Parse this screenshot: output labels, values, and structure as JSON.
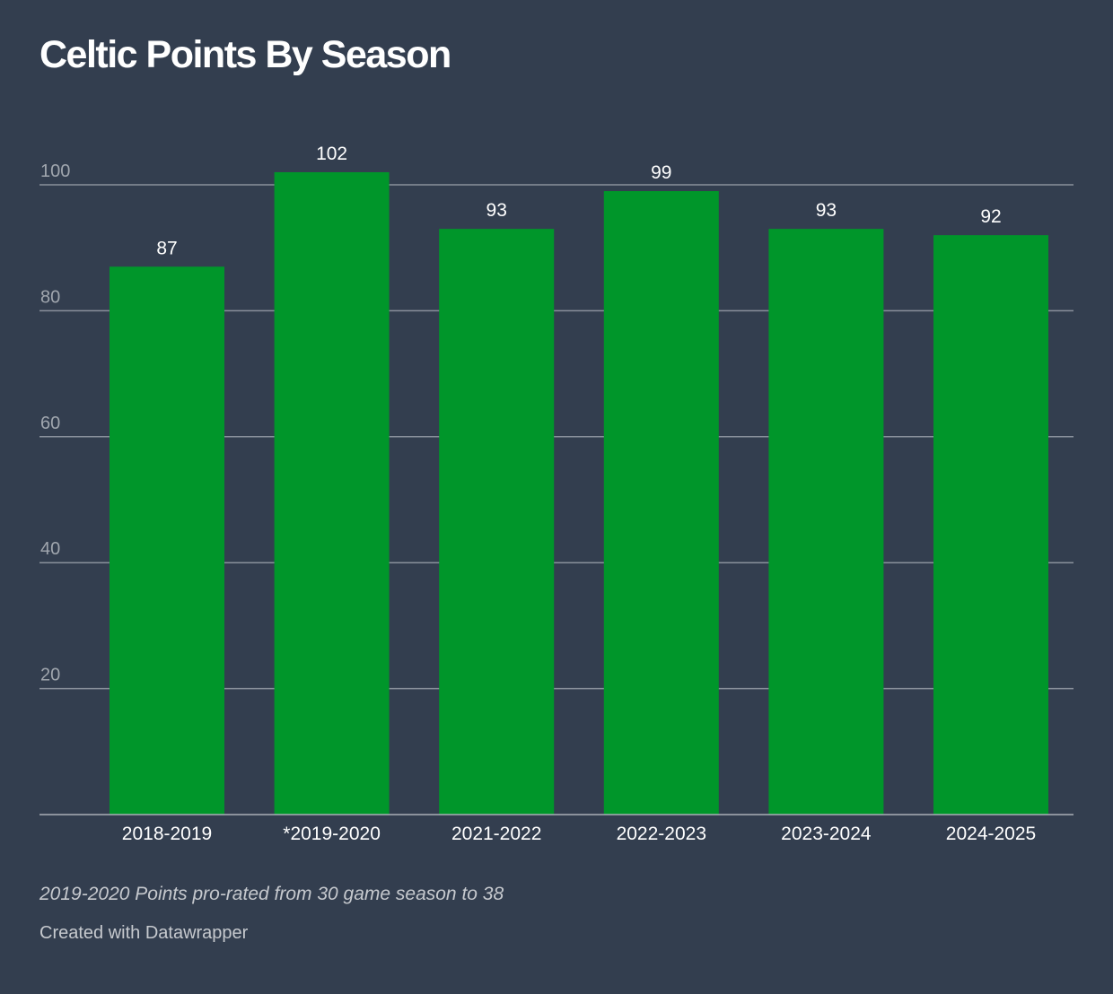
{
  "chart_data": {
    "type": "bar",
    "title": "Celtic Points By Season",
    "categories": [
      "2018-2019",
      "*2019-2020",
      "2021-2022",
      "2022-2023",
      "2023-2024",
      "2024-2025"
    ],
    "values": [
      87,
      102,
      93,
      99,
      93,
      92
    ],
    "xlabel": "",
    "ylabel": "",
    "ylim": [
      0,
      100
    ],
    "yticks": [
      20,
      40,
      60,
      80,
      100
    ],
    "grid": true,
    "bar_color": "#00962a",
    "notes": "2019-2020 Points pro-rated from 30 game season to 38",
    "credit": "Created with Datawrapper"
  }
}
